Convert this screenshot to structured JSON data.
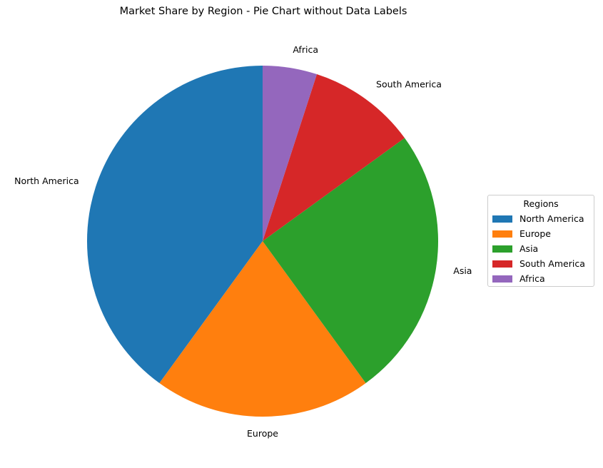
{
  "chart_data": {
    "type": "pie",
    "title": "Market Share by Region - Pie Chart without Data Labels",
    "categories": [
      "North America",
      "Europe",
      "Asia",
      "South America",
      "Africa"
    ],
    "values": [
      40,
      20,
      25,
      10,
      5
    ],
    "colors": [
      "#1f77b4",
      "#ff7f0e",
      "#2ca02c",
      "#d62728",
      "#9467bd"
    ],
    "start_angle_deg": 90,
    "direction": "counterclockwise",
    "legend": {
      "title": "Regions",
      "placement": "center-right"
    }
  }
}
